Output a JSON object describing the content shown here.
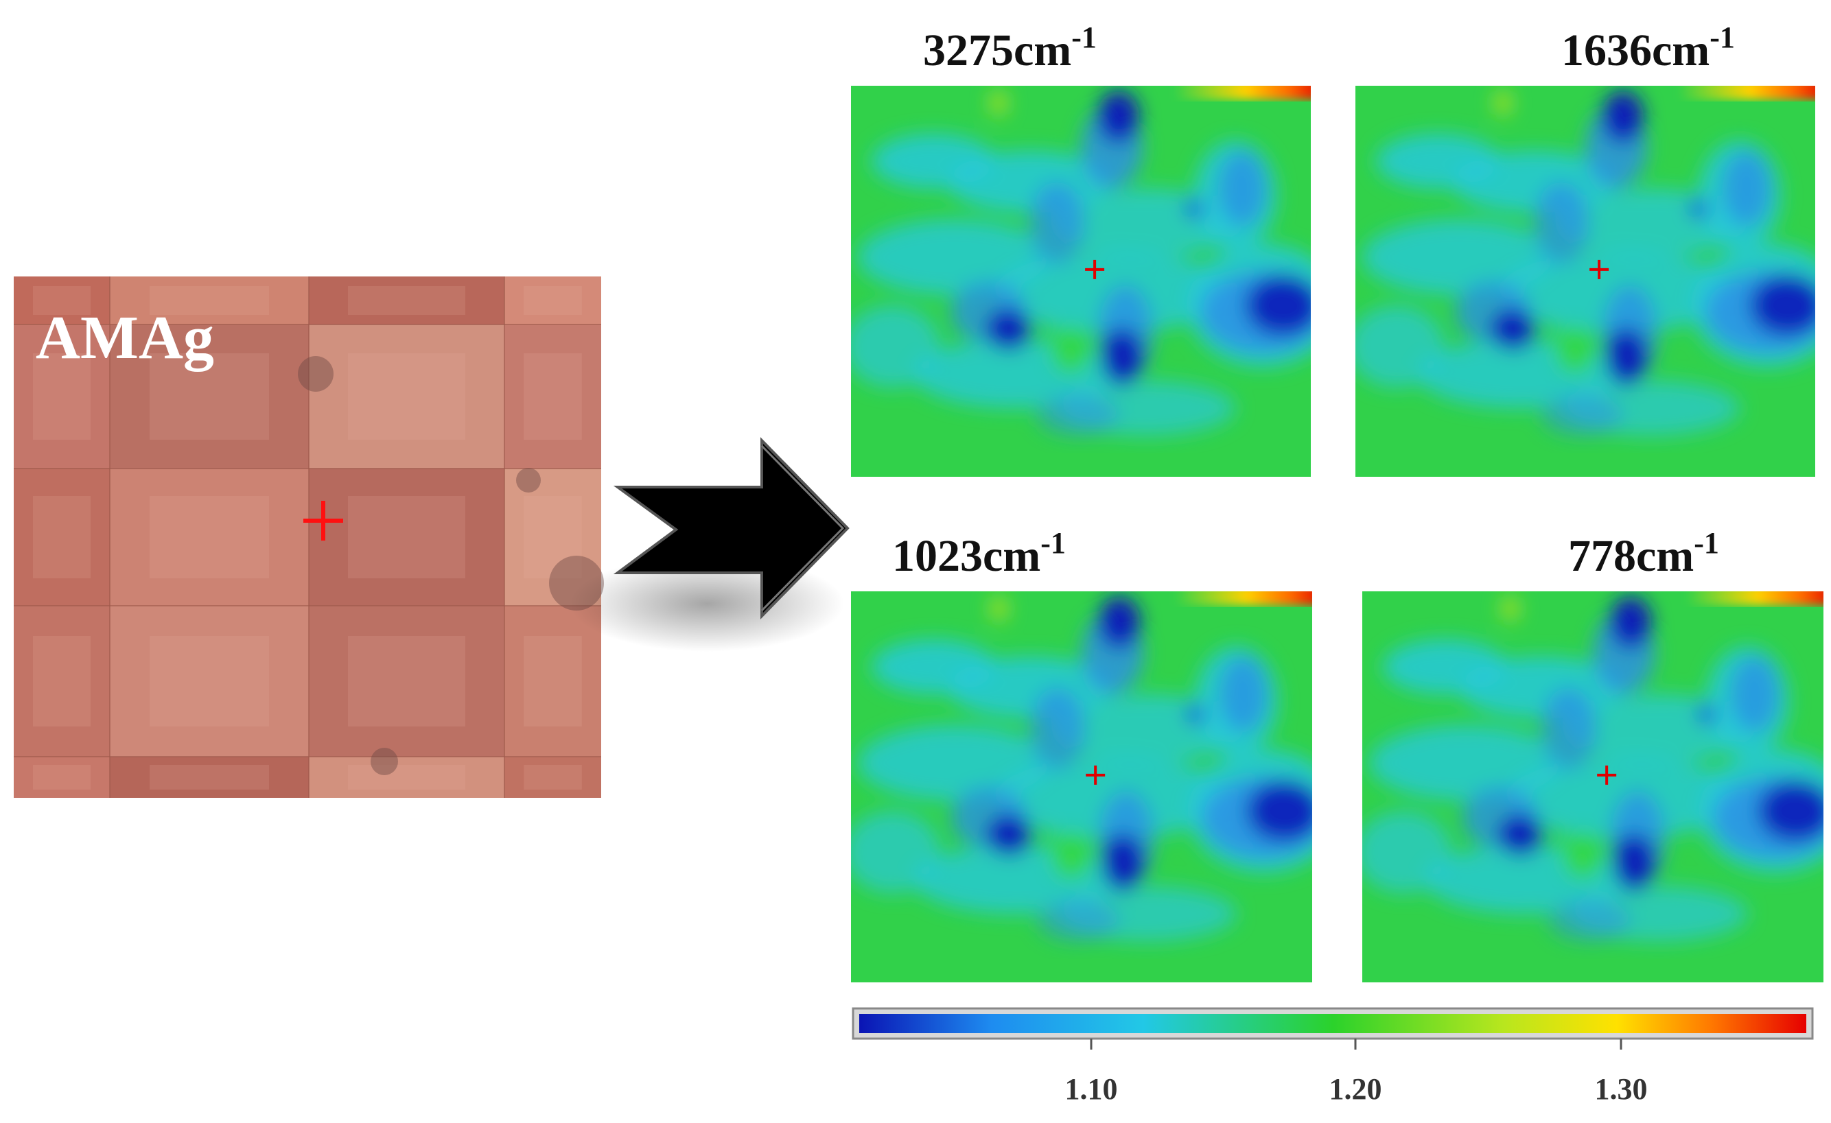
{
  "microscope": {
    "label": "AMAg",
    "grid_rows": 4,
    "grid_cols": 4,
    "marker": "red-cross-marker"
  },
  "arrow": {
    "icon": "black-arrow-icon",
    "color": "#000000"
  },
  "maps": [
    {
      "id": "map-3275",
      "wavenumber": "3275",
      "unit": "cm",
      "exponent": "-1"
    },
    {
      "id": "map-1636",
      "wavenumber": "1636",
      "unit": "cm",
      "exponent": "-1"
    },
    {
      "id": "map-1023",
      "wavenumber": "1023",
      "unit": "cm",
      "exponent": "-1"
    },
    {
      "id": "map-778",
      "wavenumber": "778",
      "unit": "cm",
      "exponent": "-1"
    }
  ],
  "colorbar": {
    "ticks": [
      "1.10",
      "1.20",
      "1.30"
    ],
    "colors": [
      "#0a14b4",
      "#1e8cf0",
      "#22c8e6",
      "#2bd22b",
      "#b8e61e",
      "#ffe100",
      "#ff7800",
      "#e60000"
    ]
  },
  "colors": {
    "map_background": "#30d04a",
    "low": "#0a1ab8",
    "mid": "#27c6dd",
    "high": "#e82010",
    "marker": "#e00000"
  }
}
